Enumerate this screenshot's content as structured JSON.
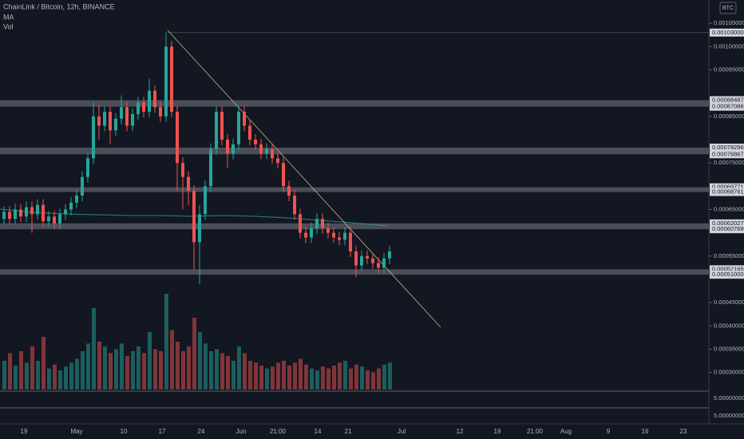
{
  "header": {
    "title": "ChainLink / Bitcoin, 12h, BINANCE",
    "indicators": [
      "MA",
      "Vol"
    ],
    "currency": "BTC"
  },
  "chart_data": {
    "type": "candlestick",
    "colors": {
      "up": "#26a69a",
      "down": "#ef5350"
    },
    "ylim": [
      0.00026,
      0.0011
    ],
    "yticks": [
      {
        "value": 0.00105,
        "label": "0.00105000"
      },
      {
        "value": 0.001,
        "label": "0.00100000"
      },
      {
        "value": 0.00095,
        "label": "0.00095000"
      },
      {
        "value": 0.00085,
        "label": "0.00085000"
      },
      {
        "value": 0.00075,
        "label": "0.00075000"
      },
      {
        "value": 0.00065,
        "label": "0.00065000"
      },
      {
        "value": 0.00055,
        "label": "0.00055000"
      },
      {
        "value": 0.00045,
        "label": "0.00045000"
      },
      {
        "value": 0.0004,
        "label": "0.00040000"
      },
      {
        "value": 0.00035,
        "label": "0.00035000"
      },
      {
        "value": 0.0003,
        "label": "0.00030000"
      }
    ],
    "levels": [
      {
        "value": 0.00103,
        "label": "0.00103000"
      },
      {
        "value": 0.00088487,
        "label": "0.00088487"
      },
      {
        "value": 0.00087086,
        "label": "0.00087086"
      },
      {
        "value": 0.00078296,
        "label": "0.00078296"
      },
      {
        "value": 0.00076867,
        "label": "0.00076867"
      },
      {
        "value": 0.00069771,
        "label": "0.00069771"
      },
      {
        "value": 0.00068761,
        "label": "0.00068761"
      },
      {
        "value": 0.00062027,
        "label": "0.00062027"
      },
      {
        "value": 0.00060768,
        "label": "0.00060768"
      },
      {
        "value": 0.00052165,
        "label": "0.00052165"
      },
      {
        "value": 0.00051,
        "label": "0.00051000"
      }
    ],
    "x_labels": [
      "19",
      "May",
      "10",
      "17",
      "24",
      "Jun",
      "21:00",
      "14",
      "21",
      "Jul",
      "12",
      "19",
      "21:00",
      "Aug",
      "9",
      "16",
      "23"
    ],
    "lower_panes": [
      "5.00000000",
      "5.00000000"
    ],
    "ohlc": [
      [
        0.00063,
        0.000657,
        0.000618,
        0.000645
      ],
      [
        0.000645,
        0.000657,
        0.000618,
        0.00063
      ],
      [
        0.00063,
        0.000662,
        0.000618,
        0.00065
      ],
      [
        0.00065,
        0.000662,
        0.000623,
        0.000635
      ],
      [
        0.000635,
        0.000667,
        0.000623,
        0.000655
      ],
      [
        0.000655,
        0.000667,
        0.0006,
        0.00064
      ],
      [
        0.00064,
        0.000672,
        0.000628,
        0.00066
      ],
      [
        0.00066,
        0.000672,
        0.000613,
        0.000625
      ],
      [
        0.000625,
        0.000647,
        0.000613,
        0.000635
      ],
      [
        0.000635,
        0.000647,
        0.000608,
        0.00062
      ],
      [
        0.00062,
        0.000652,
        0.000608,
        0.00064
      ],
      [
        0.00064,
        0.000662,
        0.000628,
        0.00065
      ],
      [
        0.00065,
        0.000677,
        0.000638,
        0.000665
      ],
      [
        0.000665,
        0.000692,
        0.000653,
        0.00068
      ],
      [
        0.00068,
        0.000732,
        0.000668,
        0.00072
      ],
      [
        0.00072,
        0.000772,
        0.000708,
        0.00076
      ],
      [
        0.00076,
        0.00088,
        0.000748,
        0.00085
      ],
      [
        0.00085,
        0.000875,
        0.0008,
        0.00083
      ],
      [
        0.00083,
        0.000872,
        0.000818,
        0.00086
      ],
      [
        0.00086,
        0.000872,
        0.00079,
        0.00082
      ],
      [
        0.00082,
        0.000857,
        0.000808,
        0.000845
      ],
      [
        0.000845,
        0.000895,
        0.000833,
        0.00087
      ],
      [
        0.00087,
        0.000882,
        0.000818,
        0.00083
      ],
      [
        0.00083,
        0.000867,
        0.000818,
        0.000855
      ],
      [
        0.000855,
        0.000892,
        0.000843,
        0.00088
      ],
      [
        0.00088,
        0.000892,
        0.000848,
        0.00086
      ],
      [
        0.00086,
        0.00093,
        0.000848,
        0.000905
      ],
      [
        0.000905,
        0.000917,
        0.000858,
        0.00087
      ],
      [
        0.00087,
        0.000882,
        0.000838,
        0.00085
      ],
      [
        0.00085,
        0.00103,
        0.000838,
        0.001
      ],
      [
        0.001,
        0.001012,
        0.000848,
        0.00086
      ],
      [
        0.00086,
        0.000872,
        0.00069,
        0.00075
      ],
      [
        0.00075,
        0.000762,
        0.00065,
        0.00072
      ],
      [
        0.00072,
        0.000732,
        0.00066,
        0.00069
      ],
      [
        0.00069,
        0.000702,
        0.00052,
        0.00058
      ],
      [
        0.00058,
        0.00066,
        0.00049,
        0.00064
      ],
      [
        0.00064,
        0.000712,
        0.000628,
        0.0007
      ],
      [
        0.0007,
        0.000792,
        0.000688,
        0.00078
      ],
      [
        0.00078,
        0.000872,
        0.000768,
        0.00086
      ],
      [
        0.00086,
        0.000872,
        0.000788,
        0.0008
      ],
      [
        0.0008,
        0.000812,
        0.00074,
        0.00077
      ],
      [
        0.00077,
        0.000802,
        0.000758,
        0.00079
      ],
      [
        0.00079,
        0.000872,
        0.000778,
        0.00086
      ],
      [
        0.00086,
        0.000872,
        0.000818,
        0.00083
      ],
      [
        0.00083,
        0.000842,
        0.000788,
        0.0008
      ],
      [
        0.0008,
        0.000812,
        0.000778,
        0.00079
      ],
      [
        0.00079,
        0.000802,
        0.000758,
        0.00077
      ],
      [
        0.00077,
        0.000792,
        0.000758,
        0.00078
      ],
      [
        0.00078,
        0.000792,
        0.000748,
        0.00076
      ],
      [
        0.00076,
        0.000772,
        0.000738,
        0.00075
      ],
      [
        0.00075,
        0.000762,
        0.000688,
        0.0007
      ],
      [
        0.0007,
        0.000712,
        0.000668,
        0.00068
      ],
      [
        0.00068,
        0.000692,
        0.000628,
        0.00064
      ],
      [
        0.00064,
        0.000652,
        0.000588,
        0.0006
      ],
      [
        0.0006,
        0.000612,
        0.000578,
        0.00059
      ],
      [
        0.00059,
        0.000622,
        0.000578,
        0.00061
      ],
      [
        0.00061,
        0.000642,
        0.000598,
        0.00063
      ],
      [
        0.00063,
        0.000642,
        0.000598,
        0.00061
      ],
      [
        0.00061,
        0.000622,
        0.000588,
        0.0006
      ],
      [
        0.0006,
        0.000612,
        0.000578,
        0.00059
      ],
      [
        0.00059,
        0.000602,
        0.000573,
        0.000585
      ],
      [
        0.000585,
        0.000612,
        0.000573,
        0.0006
      ],
      [
        0.0006,
        0.000612,
        0.000548,
        0.00056
      ],
      [
        0.00056,
        0.000572,
        0.000505,
        0.00053
      ],
      [
        0.00053,
        0.000562,
        0.000518,
        0.00055
      ],
      [
        0.00055,
        0.000562,
        0.000533,
        0.000545
      ],
      [
        0.000545,
        0.000557,
        0.000523,
        0.000535
      ],
      [
        0.000535,
        0.000547,
        0.000513,
        0.000525
      ],
      [
        0.000525,
        0.000557,
        0.000513,
        0.000545
      ],
      [
        0.000545,
        0.000572,
        0.000533,
        0.00056
      ]
    ],
    "volume": [
      30,
      38,
      25,
      40,
      28,
      45,
      30,
      55,
      22,
      26,
      20,
      24,
      28,
      32,
      40,
      48,
      85,
      50,
      45,
      38,
      42,
      48,
      35,
      40,
      45,
      38,
      60,
      42,
      40,
      100,
      62,
      50,
      40,
      45,
      75,
      60,
      48,
      40,
      42,
      38,
      35,
      30,
      45,
      38,
      30,
      28,
      25,
      22,
      24,
      28,
      30,
      25,
      28,
      32,
      26,
      22,
      20,
      24,
      22,
      25,
      28,
      30,
      22,
      26,
      24,
      20,
      18,
      22,
      26,
      28
    ]
  }
}
